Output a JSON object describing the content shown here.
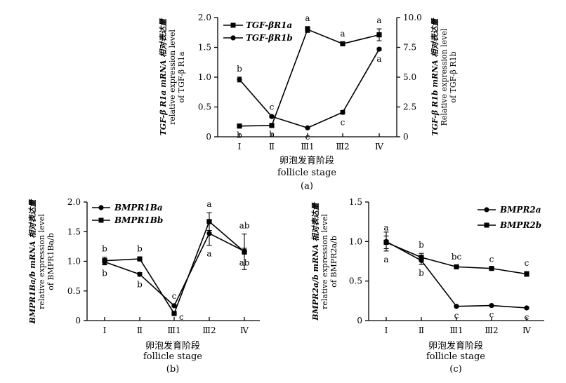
{
  "chart_data": [
    {
      "id": "a",
      "type": "line",
      "panel_label": "(a)",
      "xlabel_cn": "卵泡发育阶段",
      "xlabel": "follicle stage",
      "categories": [
        "Ⅰ",
        "Ⅱ",
        "Ⅲ1",
        "Ⅲ2",
        "Ⅳ"
      ],
      "ylabel_left": [
        "TGF-β R1a mRNA 相对表达量",
        "relative expression level",
        "of TGF-β R1a"
      ],
      "ylabel_right": [
        "TGF-β R1b mRNA 相对表达量",
        "Relative expression level",
        "of TGF-β R1b"
      ],
      "ylim_left": [
        0,
        2.0
      ],
      "ylim_right": [
        0,
        10.0
      ],
      "yticks_left": [
        "0",
        "0.5",
        "1.0",
        "1.5",
        "2.0"
      ],
      "yticks_right": [
        "0",
        "2.5",
        "5.0",
        "7.5",
        "10.0"
      ],
      "series": [
        {
          "name": "TGF-βR1a",
          "marker": "square",
          "axis": "left",
          "values": [
            0.18,
            0.19,
            1.8,
            1.56,
            1.71
          ],
          "errors": [
            0.01,
            0.01,
            0.05,
            0.03,
            0.1
          ],
          "letters": [
            "b",
            "b",
            "a",
            "a",
            "a"
          ],
          "letter_pos": [
            "below",
            "below",
            "above",
            "above",
            "above"
          ]
        },
        {
          "name": "TGF-βR1b",
          "marker": "circle",
          "axis": "right",
          "values": [
            4.8,
            1.7,
            0.75,
            2.05,
            7.35
          ],
          "errors": [
            0.2,
            0.1,
            0.05,
            0.15,
            0.1
          ],
          "letters": [
            "b",
            "c",
            "c",
            "c",
            "a"
          ],
          "letter_pos": [
            "above",
            "above",
            "below",
            "below",
            "below"
          ]
        }
      ]
    },
    {
      "id": "b",
      "type": "line",
      "panel_label": "(b)",
      "xlabel_cn": "卵泡发育阶段",
      "xlabel": "follicle stage",
      "categories": [
        "Ⅰ",
        "Ⅱ",
        "Ⅲ1",
        "Ⅲ2",
        "Ⅳ"
      ],
      "ylabel": [
        "BMPR1Ba/b mRNA 相对表达量",
        "relative expression level",
        "of BMPR1Ba/b"
      ],
      "ylim": [
        0,
        2.0
      ],
      "yticks": [
        "0",
        "0.5",
        "1.0",
        "1.5",
        "2.0"
      ],
      "series": [
        {
          "name": "BMPR1Ba",
          "marker": "circle",
          "values": [
            0.99,
            0.78,
            0.25,
            1.47,
            1.17
          ],
          "errors": [
            0.05,
            0.03,
            0.02,
            0.2,
            0.05
          ],
          "letters": [
            "b",
            "b",
            "c",
            "a",
            "ab"
          ],
          "letter_pos": [
            "below",
            "below",
            "above",
            "below",
            "below"
          ]
        },
        {
          "name": "BMPR1Bb",
          "marker": "square",
          "values": [
            1.01,
            1.04,
            0.12,
            1.67,
            1.16
          ],
          "errors": [
            0.06,
            0.03,
            0.02,
            0.15,
            0.3
          ],
          "letters": [
            "b",
            "b",
            "c",
            "a",
            "ab"
          ],
          "letter_pos": [
            "above",
            "above",
            "right",
            "above",
            "above"
          ]
        }
      ]
    },
    {
      "id": "c",
      "type": "line",
      "panel_label": "(c)",
      "xlabel_cn": "卵泡发育阶段",
      "xlabel": "follicle stage",
      "categories": [
        "Ⅰ",
        "Ⅱ",
        "Ⅲ1",
        "Ⅲ2",
        "Ⅳ"
      ],
      "ylabel": [
        "BMPR2a/b mRNA 相对表达量",
        "relative expression level",
        "of BMPR2a/b"
      ],
      "ylim": [
        0,
        1.5
      ],
      "yticks": [
        "0",
        "0.5",
        "1.0",
        "1.5"
      ],
      "series": [
        {
          "name": "BMPR2a",
          "marker": "circle",
          "values": [
            1.0,
            0.76,
            0.18,
            0.19,
            0.16
          ],
          "errors": [
            0.12,
            0.05,
            0.01,
            0.01,
            0.01
          ],
          "letters": [
            "a",
            "b",
            "c",
            "c",
            "c"
          ],
          "letter_pos": [
            "below",
            "below",
            "below",
            "below",
            "below"
          ]
        },
        {
          "name": "BMPR2b",
          "marker": "square",
          "values": [
            0.99,
            0.8,
            0.68,
            0.66,
            0.59
          ],
          "errors": [
            0.08,
            0.05,
            0.02,
            0.01,
            0.03
          ],
          "letters": [
            "a",
            "b",
            "bc",
            "c",
            "c"
          ],
          "letter_pos": [
            "above",
            "above",
            "above",
            "above",
            "above"
          ]
        }
      ]
    }
  ]
}
